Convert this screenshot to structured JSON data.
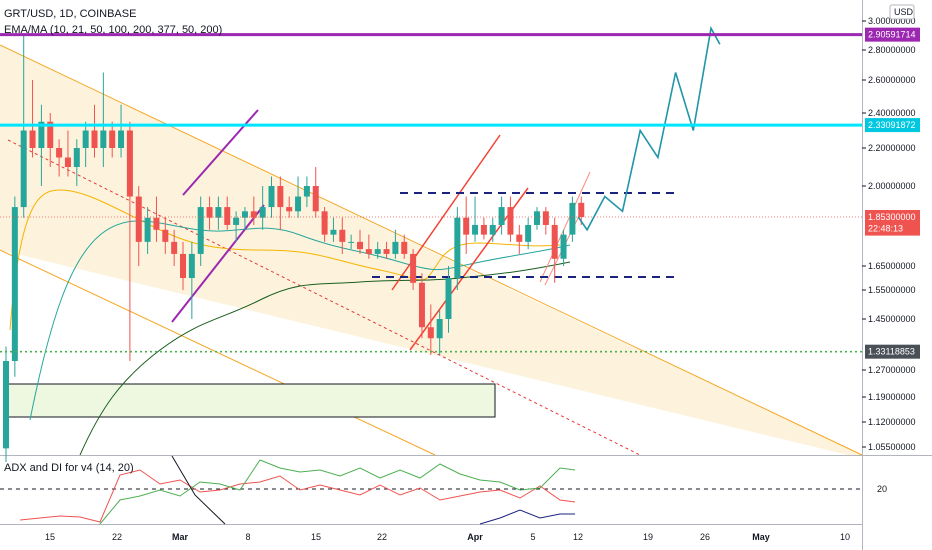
{
  "header": {
    "symbol_line": "GRT/USD, 1D, COINBASE",
    "indicator_line": "EMA/MA (10, 21, 50, 100, 200, 377, 50, 200)",
    "sub_indicator": "ADX and DI for v4 (14, 20)",
    "currency": "USD"
  },
  "colors": {
    "bull": "#26a69a",
    "bear": "#ef5350",
    "purple": "#9c27b0",
    "cyan": "#00e5ff",
    "projection": "#2196a8",
    "channel_fill": "#fdf0d5",
    "channel_line": "#f5a623",
    "navy": "#1a237e"
  },
  "price_axis": {
    "ticks": [
      "3.00000000",
      "2.80000000",
      "2.60000000",
      "2.40000000",
      "2.20000000",
      "2.00000000",
      "1.65000000",
      "1.55000000",
      "1.45000000",
      "1.27000000",
      "1.19000000",
      "1.12000000",
      "1.05500000"
    ],
    "tick_values": [
      3.0,
      2.8,
      2.6,
      2.4,
      2.2,
      2.0,
      1.65,
      1.55,
      1.45,
      1.27,
      1.19,
      1.12,
      1.055
    ]
  },
  "price_tags": [
    {
      "text": "2.90591714",
      "value": 2.90591714,
      "color": "#9c27b0"
    },
    {
      "text": "2.33091872",
      "value": 2.33091872,
      "color": "#00c8e0"
    },
    {
      "text": "1.85300000",
      "value": 1.853,
      "color": "#ef5350"
    },
    {
      "text": "22:48:13",
      "value": 1.805,
      "color": "#ef5350"
    },
    {
      "text": "1.33118853",
      "value": 1.33118853,
      "color": "#4a5057"
    }
  ],
  "time_axis": {
    "labels": [
      "15",
      "22",
      "Mar",
      "8",
      "15",
      "22",
      "Apr",
      "5",
      "12",
      "19",
      "26",
      "May",
      "10"
    ],
    "bold": [
      "Mar",
      "Apr",
      "May"
    ]
  },
  "adx_axis": {
    "label": "20"
  },
  "chart_data": {
    "type": "candlestick",
    "candles": [
      {
        "o": 1.05,
        "h": 1.35,
        "l": 1.0,
        "c": 1.3
      },
      {
        "o": 1.3,
        "h": 1.95,
        "l": 1.25,
        "c": 1.9
      },
      {
        "o": 1.9,
        "h": 2.9,
        "l": 1.85,
        "c": 2.3
      },
      {
        "o": 2.3,
        "h": 2.6,
        "l": 2.15,
        "c": 2.2
      },
      {
        "o": 2.2,
        "h": 2.45,
        "l": 2.0,
        "c": 2.35
      },
      {
        "o": 2.35,
        "h": 2.4,
        "l": 2.1,
        "c": 2.2
      },
      {
        "o": 2.2,
        "h": 2.25,
        "l": 2.05,
        "c": 2.15
      },
      {
        "o": 2.15,
        "h": 2.3,
        "l": 2.05,
        "c": 2.1
      },
      {
        "o": 2.1,
        "h": 2.25,
        "l": 2.0,
        "c": 2.2
      },
      {
        "o": 2.2,
        "h": 2.35,
        "l": 2.1,
        "c": 2.3
      },
      {
        "o": 2.3,
        "h": 2.45,
        "l": 2.15,
        "c": 2.2
      },
      {
        "o": 2.2,
        "h": 2.65,
        "l": 2.1,
        "c": 2.3
      },
      {
        "o": 2.3,
        "h": 2.35,
        "l": 2.15,
        "c": 2.2
      },
      {
        "o": 2.2,
        "h": 2.45,
        "l": 2.15,
        "c": 2.3
      },
      {
        "o": 2.3,
        "h": 2.35,
        "l": 1.3,
        "c": 1.95
      },
      {
        "o": 1.95,
        "h": 2.0,
        "l": 1.65,
        "c": 1.75
      },
      {
        "o": 1.75,
        "h": 1.9,
        "l": 1.7,
        "c": 1.85
      },
      {
        "o": 1.85,
        "h": 1.95,
        "l": 1.75,
        "c": 1.8
      },
      {
        "o": 1.8,
        "h": 1.85,
        "l": 1.7,
        "c": 1.75
      },
      {
        "o": 1.75,
        "h": 1.8,
        "l": 1.65,
        "c": 1.7
      },
      {
        "o": 1.7,
        "h": 1.75,
        "l": 1.55,
        "c": 1.6
      },
      {
        "o": 1.6,
        "h": 1.75,
        "l": 1.45,
        "c": 1.7
      },
      {
        "o": 1.7,
        "h": 1.95,
        "l": 1.65,
        "c": 1.9
      },
      {
        "o": 1.9,
        "h": 1.95,
        "l": 1.8,
        "c": 1.85
      },
      {
        "o": 1.85,
        "h": 1.95,
        "l": 1.8,
        "c": 1.9
      },
      {
        "o": 1.9,
        "h": 1.95,
        "l": 1.8,
        "c": 1.82
      },
      {
        "o": 1.82,
        "h": 1.88,
        "l": 1.75,
        "c": 1.85
      },
      {
        "o": 1.85,
        "h": 1.9,
        "l": 1.8,
        "c": 1.88
      },
      {
        "o": 1.88,
        "h": 1.95,
        "l": 1.82,
        "c": 1.85
      },
      {
        "o": 1.85,
        "h": 2.0,
        "l": 1.8,
        "c": 1.9
      },
      {
        "o": 1.9,
        "h": 2.05,
        "l": 1.85,
        "c": 2.0
      },
      {
        "o": 2.0,
        "h": 2.05,
        "l": 1.8,
        "c": 1.9
      },
      {
        "o": 1.9,
        "h": 1.95,
        "l": 1.85,
        "c": 1.88
      },
      {
        "o": 1.88,
        "h": 2.05,
        "l": 1.85,
        "c": 1.95
      },
      {
        "o": 1.95,
        "h": 2.05,
        "l": 1.9,
        "c": 2.0
      },
      {
        "o": 2.0,
        "h": 2.1,
        "l": 1.85,
        "c": 1.88
      },
      {
        "o": 1.88,
        "h": 1.9,
        "l": 1.75,
        "c": 1.78
      },
      {
        "o": 1.78,
        "h": 1.85,
        "l": 1.75,
        "c": 1.8
      },
      {
        "o": 1.8,
        "h": 1.85,
        "l": 1.7,
        "c": 1.75
      },
      {
        "o": 1.75,
        "h": 1.78,
        "l": 1.72,
        "c": 1.75
      },
      {
        "o": 1.75,
        "h": 1.8,
        "l": 1.7,
        "c": 1.72
      },
      {
        "o": 1.72,
        "h": 1.78,
        "l": 1.68,
        "c": 1.7
      },
      {
        "o": 1.7,
        "h": 1.75,
        "l": 1.68,
        "c": 1.72
      },
      {
        "o": 1.72,
        "h": 1.75,
        "l": 1.68,
        "c": 1.7
      },
      {
        "o": 1.7,
        "h": 1.8,
        "l": 1.68,
        "c": 1.75
      },
      {
        "o": 1.75,
        "h": 1.78,
        "l": 1.68,
        "c": 1.7
      },
      {
        "o": 1.7,
        "h": 1.72,
        "l": 1.55,
        "c": 1.58
      },
      {
        "o": 1.58,
        "h": 1.62,
        "l": 1.38,
        "c": 1.42
      },
      {
        "o": 1.42,
        "h": 1.5,
        "l": 1.32,
        "c": 1.38
      },
      {
        "o": 1.38,
        "h": 1.48,
        "l": 1.32,
        "c": 1.45
      },
      {
        "o": 1.45,
        "h": 1.65,
        "l": 1.4,
        "c": 1.6
      },
      {
        "o": 1.6,
        "h": 1.9,
        "l": 1.55,
        "c": 1.85
      },
      {
        "o": 1.85,
        "h": 1.95,
        "l": 1.7,
        "c": 1.78
      },
      {
        "o": 1.78,
        "h": 1.95,
        "l": 1.75,
        "c": 1.82
      },
      {
        "o": 1.82,
        "h": 1.85,
        "l": 1.76,
        "c": 1.78
      },
      {
        "o": 1.78,
        "h": 1.85,
        "l": 1.75,
        "c": 1.82
      },
      {
        "o": 1.82,
        "h": 1.95,
        "l": 1.78,
        "c": 1.9
      },
      {
        "o": 1.9,
        "h": 1.95,
        "l": 1.75,
        "c": 1.78
      },
      {
        "o": 1.78,
        "h": 1.82,
        "l": 1.7,
        "c": 1.75
      },
      {
        "o": 1.75,
        "h": 1.85,
        "l": 1.72,
        "c": 1.82
      },
      {
        "o": 1.82,
        "h": 1.9,
        "l": 1.8,
        "c": 1.88
      },
      {
        "o": 1.88,
        "h": 1.9,
        "l": 1.78,
        "c": 1.82
      },
      {
        "o": 1.82,
        "h": 1.85,
        "l": 1.58,
        "c": 1.68
      },
      {
        "o": 1.68,
        "h": 1.8,
        "l": 1.65,
        "c": 1.78
      },
      {
        "o": 1.78,
        "h": 1.95,
        "l": 1.75,
        "c": 1.92
      },
      {
        "o": 1.92,
        "h": 1.95,
        "l": 1.82,
        "c": 1.853
      }
    ],
    "projection": [
      [
        65,
        1.853
      ],
      [
        66,
        1.8
      ],
      [
        68,
        1.95
      ],
      [
        70,
        1.88
      ],
      [
        72,
        2.3
      ],
      [
        74,
        2.15
      ],
      [
        76,
        2.65
      ],
      [
        78,
        2.3
      ],
      [
        80,
        2.95
      ],
      [
        81,
        2.84
      ]
    ]
  }
}
